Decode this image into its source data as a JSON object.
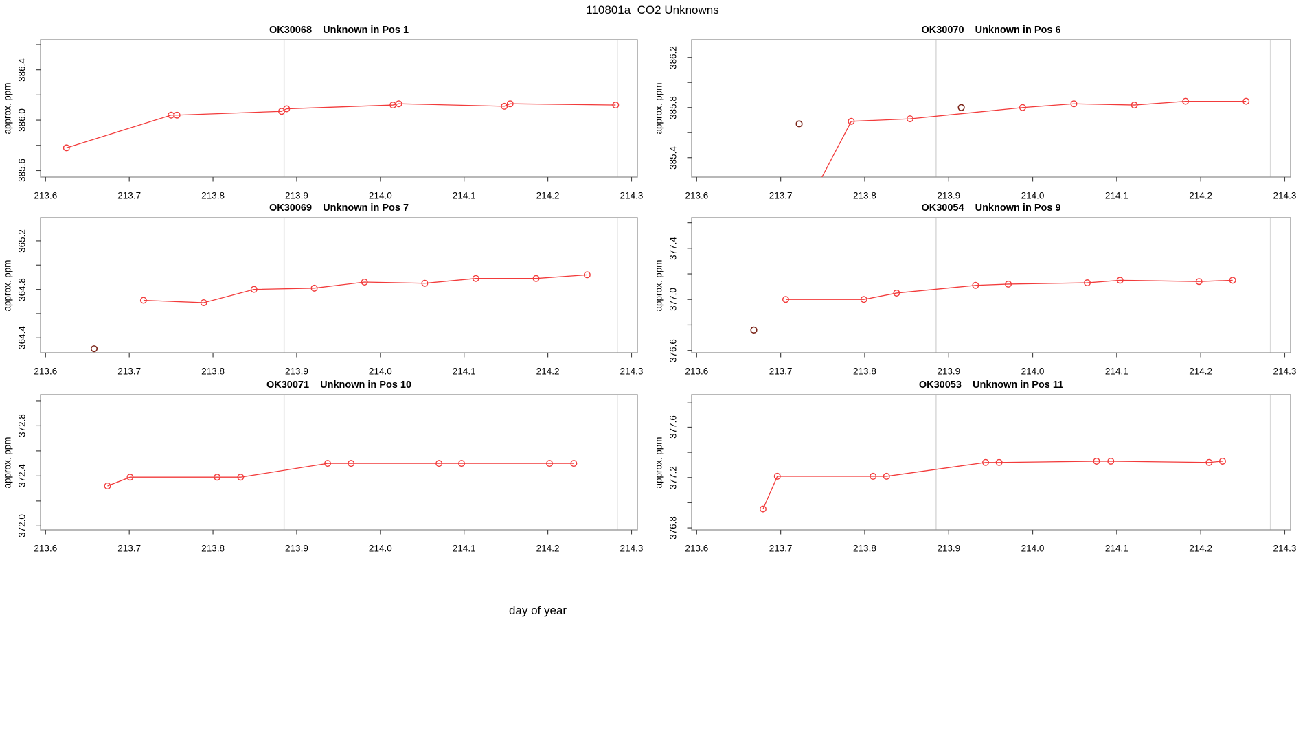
{
  "figure": {
    "title": "110801a  CO2 Unknowns",
    "x_axis_label": "day of year",
    "y_axis_label": "approx. ppm",
    "colors": {
      "series": "#f23b3b",
      "flagged": "#7a2418",
      "reference_line": "#d9d9d9",
      "box": "#999999",
      "tick": "#444444",
      "text": "#000000",
      "background": "#ffffff"
    }
  },
  "chart_data": [
    {
      "id": "OK30068",
      "title": "OK30068    Unknown in Pos 1",
      "type": "line",
      "ylabel": "approx. ppm",
      "xlim": [
        213.594,
        214.307
      ],
      "ylim": [
        385.548,
        386.638
      ],
      "x_ticks": [
        213.6,
        213.7,
        213.8,
        213.9,
        214.0,
        214.1,
        214.2,
        214.3
      ],
      "x_tick_labels": [
        "213.6",
        "213.7",
        "213.8",
        "213.9",
        "214.0",
        "214.1",
        "214.2",
        "214.3"
      ],
      "y_ticks": [
        385.6,
        385.8,
        386.0,
        386.2,
        386.4,
        386.6
      ],
      "y_tick_labels": [
        "385.6",
        "",
        "386.0",
        "",
        "386.4",
        ""
      ],
      "reference_lines_x": [
        213.885,
        214.283
      ],
      "series": {
        "x": [
          213.625,
          213.75,
          213.757,
          213.882,
          213.888,
          214.015,
          214.022,
          214.148,
          214.155,
          214.281
        ],
        "y": [
          385.78,
          386.04,
          386.04,
          386.07,
          386.09,
          386.12,
          386.13,
          386.11,
          386.13,
          386.12
        ]
      },
      "flagged_points": {
        "x": [],
        "y": []
      }
    },
    {
      "id": "OK30070",
      "title": "OK30070    Unknown in Pos 6",
      "type": "line",
      "ylabel": "approx. ppm",
      "xlim": [
        213.594,
        214.307
      ],
      "ylim": [
        385.245,
        386.341
      ],
      "x_ticks": [
        213.6,
        213.7,
        213.8,
        213.9,
        214.0,
        214.1,
        214.2,
        214.3
      ],
      "x_tick_labels": [
        "213.6",
        "213.7",
        "213.8",
        "213.9",
        "214.0",
        "214.1",
        "214.2",
        "214.3"
      ],
      "y_ticks": [
        385.4,
        385.6,
        385.8,
        386.0,
        386.2
      ],
      "y_tick_labels": [
        "385.4",
        "",
        "385.8",
        "",
        "386.2"
      ],
      "reference_lines_x": [
        213.885,
        214.283
      ],
      "offscale_entry_point": {
        "x": 213.73,
        "y": 385.0
      },
      "note": "line enters plot from below the y-range before first visible point",
      "series": {
        "x": [
          213.784,
          213.854,
          213.988,
          214.049,
          214.121,
          214.182,
          214.254
        ],
        "y": [
          385.69,
          385.71,
          385.8,
          385.83,
          385.82,
          385.85,
          385.85
        ]
      },
      "flagged_points": {
        "x": [
          213.722,
          213.915
        ],
        "y": [
          385.67,
          385.8
        ]
      }
    },
    {
      "id": "OK30069",
      "title": "OK30069    Unknown in Pos 7",
      "type": "line",
      "ylabel": "approx. ppm",
      "xlim": [
        213.594,
        214.307
      ],
      "ylim": [
        364.277,
        365.392
      ],
      "x_ticks": [
        213.6,
        213.7,
        213.8,
        213.9,
        214.0,
        214.1,
        214.2,
        214.3
      ],
      "x_tick_labels": [
        "213.6",
        "213.7",
        "213.8",
        "213.9",
        "214.0",
        "214.1",
        "214.2",
        "214.3"
      ],
      "y_ticks": [
        364.4,
        364.6,
        364.8,
        365.0,
        365.2
      ],
      "y_tick_labels": [
        "364.4",
        "",
        "364.8",
        "",
        "365.2"
      ],
      "reference_lines_x": [
        213.885,
        214.283
      ],
      "series": {
        "x": [
          213.717,
          213.789,
          213.849,
          213.921,
          213.981,
          214.053,
          214.114,
          214.186,
          214.247
        ],
        "y": [
          364.71,
          364.69,
          364.8,
          364.81,
          364.86,
          364.85,
          364.89,
          364.89,
          364.92
        ]
      },
      "flagged_points": {
        "x": [
          213.658
        ],
        "y": [
          364.31
        ]
      }
    },
    {
      "id": "OK30054",
      "title": "OK30054    Unknown in Pos 9",
      "type": "line",
      "ylabel": "approx. ppm",
      "xlim": [
        213.594,
        214.307
      ],
      "ylim": [
        376.582,
        377.641
      ],
      "x_ticks": [
        213.6,
        213.7,
        213.8,
        213.9,
        214.0,
        214.1,
        214.2,
        214.3
      ],
      "x_tick_labels": [
        "213.6",
        "213.7",
        "213.8",
        "213.9",
        "214.0",
        "214.1",
        "214.2",
        "214.3"
      ],
      "y_ticks": [
        376.6,
        376.8,
        377.0,
        377.2,
        377.4,
        377.6
      ],
      "y_tick_labels": [
        "376.6",
        "",
        "377.0",
        "",
        "377.4",
        ""
      ],
      "reference_lines_x": [
        213.885,
        214.283
      ],
      "series": {
        "x": [
          213.706,
          213.799,
          213.838,
          213.932,
          213.971,
          214.065,
          214.104,
          214.198,
          214.238
        ],
        "y": [
          377.0,
          377.0,
          377.05,
          377.11,
          377.12,
          377.13,
          377.15,
          377.14,
          377.15
        ]
      },
      "flagged_points": {
        "x": [
          213.668
        ],
        "y": [
          376.76
        ]
      }
    },
    {
      "id": "OK30071",
      "title": "OK30071    Unknown in Pos 10",
      "type": "line",
      "ylabel": "approx. ppm",
      "xlim": [
        213.594,
        214.307
      ],
      "ylim": [
        371.969,
        373.049
      ],
      "x_ticks": [
        213.6,
        213.7,
        213.8,
        213.9,
        214.0,
        214.1,
        214.2,
        214.3
      ],
      "x_tick_labels": [
        "213.6",
        "213.7",
        "213.8",
        "213.9",
        "214.0",
        "214.1",
        "214.2",
        "214.3"
      ],
      "y_ticks": [
        372.0,
        372.2,
        372.4,
        372.6,
        372.8,
        373.0
      ],
      "y_tick_labels": [
        "372.0",
        "",
        "372.4",
        "",
        "372.8",
        ""
      ],
      "reference_lines_x": [
        213.885,
        214.283
      ],
      "series": {
        "x": [
          213.674,
          213.701,
          213.805,
          213.833,
          213.937,
          213.965,
          214.07,
          214.097,
          214.202,
          214.231
        ],
        "y": [
          372.32,
          372.39,
          372.39,
          372.39,
          372.5,
          372.5,
          372.5,
          372.5,
          372.5,
          372.5
        ]
      },
      "flagged_points": {
        "x": [],
        "y": []
      }
    },
    {
      "id": "OK30053",
      "title": "OK30053    Unknown in Pos 11",
      "type": "line",
      "ylabel": "approx. ppm",
      "xlim": [
        213.594,
        214.307
      ],
      "ylim": [
        376.784,
        377.859
      ],
      "x_ticks": [
        213.6,
        213.7,
        213.8,
        213.9,
        214.0,
        214.1,
        214.2,
        214.3
      ],
      "x_tick_labels": [
        "213.6",
        "213.7",
        "213.8",
        "213.9",
        "214.0",
        "214.1",
        "214.2",
        "214.3"
      ],
      "y_ticks": [
        376.8,
        377.0,
        377.2,
        377.4,
        377.6,
        377.8
      ],
      "y_tick_labels": [
        "376.8",
        "",
        "377.2",
        "",
        "377.6",
        ""
      ],
      "reference_lines_x": [
        213.885,
        214.283
      ],
      "series": {
        "x": [
          213.679,
          213.696,
          213.81,
          213.826,
          213.944,
          213.96,
          214.076,
          214.093,
          214.21,
          214.226
        ],
        "y": [
          376.95,
          377.21,
          377.21,
          377.21,
          377.32,
          377.32,
          377.33,
          377.33,
          377.32,
          377.33
        ]
      },
      "flagged_points": {
        "x": [],
        "y": []
      }
    }
  ],
  "layout_notes": {
    "grid": "3 rows x 2 columns",
    "reference_line_meaning": "vertical light-gray lines at day 213.885 and 214.283 in every panel"
  }
}
